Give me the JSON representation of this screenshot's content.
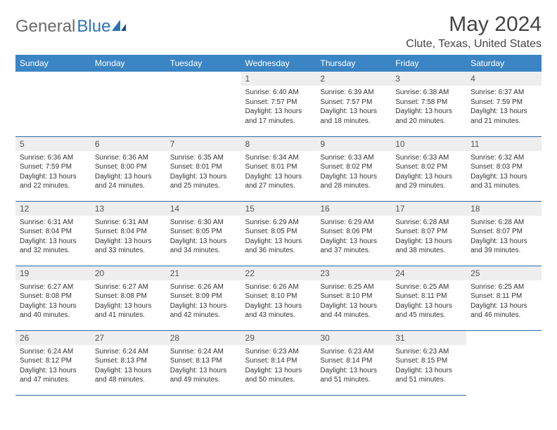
{
  "logo": {
    "part1": "General",
    "part2": "Blue"
  },
  "title": "May 2024",
  "location": "Clute, Texas, United States",
  "header_bg": "#3b85c4",
  "rule_color": "#3069a0",
  "daynum_bg": "#eeeeee",
  "days": [
    "Sunday",
    "Monday",
    "Tuesday",
    "Wednesday",
    "Thursday",
    "Friday",
    "Saturday"
  ],
  "weeks": [
    [
      null,
      null,
      null,
      {
        "n": "1",
        "sr": "6:40 AM",
        "ss": "7:57 PM",
        "dl": "13 hours and 17 minutes."
      },
      {
        "n": "2",
        "sr": "6:39 AM",
        "ss": "7:57 PM",
        "dl": "13 hours and 18 minutes."
      },
      {
        "n": "3",
        "sr": "6:38 AM",
        "ss": "7:58 PM",
        "dl": "13 hours and 20 minutes."
      },
      {
        "n": "4",
        "sr": "6:37 AM",
        "ss": "7:59 PM",
        "dl": "13 hours and 21 minutes."
      }
    ],
    [
      {
        "n": "5",
        "sr": "6:36 AM",
        "ss": "7:59 PM",
        "dl": "13 hours and 22 minutes."
      },
      {
        "n": "6",
        "sr": "6:36 AM",
        "ss": "8:00 PM",
        "dl": "13 hours and 24 minutes."
      },
      {
        "n": "7",
        "sr": "6:35 AM",
        "ss": "8:01 PM",
        "dl": "13 hours and 25 minutes."
      },
      {
        "n": "8",
        "sr": "6:34 AM",
        "ss": "8:01 PM",
        "dl": "13 hours and 27 minutes."
      },
      {
        "n": "9",
        "sr": "6:33 AM",
        "ss": "8:02 PM",
        "dl": "13 hours and 28 minutes."
      },
      {
        "n": "10",
        "sr": "6:33 AM",
        "ss": "8:02 PM",
        "dl": "13 hours and 29 minutes."
      },
      {
        "n": "11",
        "sr": "6:32 AM",
        "ss": "8:03 PM",
        "dl": "13 hours and 31 minutes."
      }
    ],
    [
      {
        "n": "12",
        "sr": "6:31 AM",
        "ss": "8:04 PM",
        "dl": "13 hours and 32 minutes."
      },
      {
        "n": "13",
        "sr": "6:31 AM",
        "ss": "8:04 PM",
        "dl": "13 hours and 33 minutes."
      },
      {
        "n": "14",
        "sr": "6:30 AM",
        "ss": "8:05 PM",
        "dl": "13 hours and 34 minutes."
      },
      {
        "n": "15",
        "sr": "6:29 AM",
        "ss": "8:05 PM",
        "dl": "13 hours and 36 minutes."
      },
      {
        "n": "16",
        "sr": "6:29 AM",
        "ss": "8:06 PM",
        "dl": "13 hours and 37 minutes."
      },
      {
        "n": "17",
        "sr": "6:28 AM",
        "ss": "8:07 PM",
        "dl": "13 hours and 38 minutes."
      },
      {
        "n": "18",
        "sr": "6:28 AM",
        "ss": "8:07 PM",
        "dl": "13 hours and 39 minutes."
      }
    ],
    [
      {
        "n": "19",
        "sr": "6:27 AM",
        "ss": "8:08 PM",
        "dl": "13 hours and 40 minutes."
      },
      {
        "n": "20",
        "sr": "6:27 AM",
        "ss": "8:08 PM",
        "dl": "13 hours and 41 minutes."
      },
      {
        "n": "21",
        "sr": "6:26 AM",
        "ss": "8:09 PM",
        "dl": "13 hours and 42 minutes."
      },
      {
        "n": "22",
        "sr": "6:26 AM",
        "ss": "8:10 PM",
        "dl": "13 hours and 43 minutes."
      },
      {
        "n": "23",
        "sr": "6:25 AM",
        "ss": "8:10 PM",
        "dl": "13 hours and 44 minutes."
      },
      {
        "n": "24",
        "sr": "6:25 AM",
        "ss": "8:11 PM",
        "dl": "13 hours and 45 minutes."
      },
      {
        "n": "25",
        "sr": "6:25 AM",
        "ss": "8:11 PM",
        "dl": "13 hours and 46 minutes."
      }
    ],
    [
      {
        "n": "26",
        "sr": "6:24 AM",
        "ss": "8:12 PM",
        "dl": "13 hours and 47 minutes."
      },
      {
        "n": "27",
        "sr": "6:24 AM",
        "ss": "8:13 PM",
        "dl": "13 hours and 48 minutes."
      },
      {
        "n": "28",
        "sr": "6:24 AM",
        "ss": "8:13 PM",
        "dl": "13 hours and 49 minutes."
      },
      {
        "n": "29",
        "sr": "6:23 AM",
        "ss": "8:14 PM",
        "dl": "13 hours and 50 minutes."
      },
      {
        "n": "30",
        "sr": "6:23 AM",
        "ss": "8:14 PM",
        "dl": "13 hours and 51 minutes."
      },
      {
        "n": "31",
        "sr": "6:23 AM",
        "ss": "8:15 PM",
        "dl": "13 hours and 51 minutes."
      },
      null
    ]
  ],
  "labels": {
    "sunrise": "Sunrise:",
    "sunset": "Sunset:",
    "daylight": "Daylight:"
  }
}
